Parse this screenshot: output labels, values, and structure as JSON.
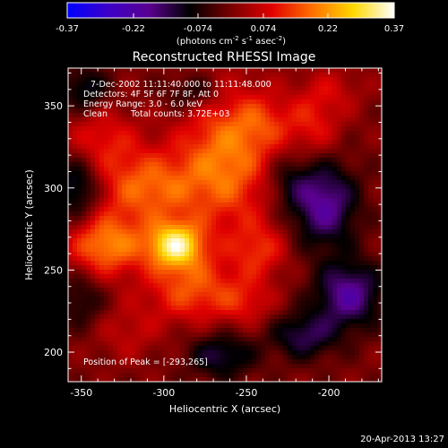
{
  "colorbar": {
    "min_label": "-0.37",
    "max_label": "0.37",
    "tick_labels": [
      "-0.37",
      "-0.22",
      "-0.074",
      "0.074",
      "0.22",
      "0.37"
    ],
    "tick_values": [
      -0.37,
      -0.22,
      -0.074,
      0.074,
      0.22,
      0.37
    ],
    "units_main": "(photons cm",
    "units_exp1": "-2",
    "units_mid": " s",
    "units_exp2": "-1",
    "units_tail": " asec",
    "units_exp3": "-2",
    "units_close": ")",
    "stops": [
      "#0000ff",
      "#3c00c8",
      "#5a0090",
      "#000000",
      "#780000",
      "#e00000",
      "#ff7000",
      "#ffd800",
      "#ffffff"
    ]
  },
  "title": "Reconstructed RHESSI Image",
  "annotations": {
    "time_range": "7-Dec-2002 11:11:40.000 to 11:11:48.000",
    "detectors": "Detectors: 4F 5F 6F 7F 8F, Att 0",
    "energy": "Energy Range: 3.0 - 6.0 keV",
    "clean": "Clean",
    "counts": "Total counts: 3.72E+03",
    "peak": "Position of Peak = [-293,265]"
  },
  "footer_date": "20-Apr-2013 13:27",
  "chart_data": {
    "type": "heatmap",
    "title": "Reconstructed RHESSI Image",
    "xlabel": "Heliocentric X (arcsec)",
    "ylabel": "Heliocentric Y (arcsec)",
    "xlim": [
      -358,
      -168
    ],
    "ylim": [
      182,
      373
    ],
    "x_ticks": [
      -350,
      -300,
      -250,
      -200
    ],
    "y_ticks": [
      200,
      250,
      300,
      350
    ],
    "x_tick_labels": [
      "-350",
      "-300",
      "-250",
      "-200"
    ],
    "y_tick_labels": [
      "200",
      "250",
      "300",
      "350"
    ],
    "value_range": [
      -0.37,
      0.37
    ],
    "peak": {
      "x": -293,
      "y": 265,
      "value": 0.37
    },
    "colormap": "blue-purple-black-red-yellow-white",
    "blobs": [
      {
        "x": -293,
        "y": 265,
        "sx": 12,
        "sy": 10,
        "amp": 0.3
      },
      {
        "x": -335,
        "y": 265,
        "sx": 16,
        "sy": 13,
        "amp": 0.2
      },
      {
        "x": -310,
        "y": 300,
        "sx": 22,
        "sy": 16,
        "amp": 0.17
      },
      {
        "x": -262,
        "y": 318,
        "sx": 20,
        "sy": 30,
        "amp": 0.19
      },
      {
        "x": -283,
        "y": 238,
        "sx": 20,
        "sy": 14,
        "amp": 0.15
      },
      {
        "x": -242,
        "y": 262,
        "sx": 12,
        "sy": 12,
        "amp": 0.11
      },
      {
        "x": -250,
        "y": 230,
        "sx": 12,
        "sy": 10,
        "amp": 0.08
      },
      {
        "x": -338,
        "y": 330,
        "sx": 16,
        "sy": 14,
        "amp": 0.1
      },
      {
        "x": -322,
        "y": 212,
        "sx": 14,
        "sy": 12,
        "amp": 0.06
      },
      {
        "x": -240,
        "y": 340,
        "sx": 12,
        "sy": 12,
        "amp": 0.08
      },
      {
        "x": -210,
        "y": 338,
        "sx": 12,
        "sy": 14,
        "amp": 0.1
      },
      {
        "x": -198,
        "y": 360,
        "sx": 14,
        "sy": 10,
        "amp": 0.06
      },
      {
        "x": -203,
        "y": 290,
        "sx": 14,
        "sy": 18,
        "amp": -0.2
      },
      {
        "x": -188,
        "y": 235,
        "sx": 14,
        "sy": 14,
        "amp": -0.2
      },
      {
        "x": -215,
        "y": 210,
        "sx": 14,
        "sy": 10,
        "amp": -0.14
      },
      {
        "x": -352,
        "y": 300,
        "sx": 10,
        "sy": 14,
        "amp": -0.15
      },
      {
        "x": -348,
        "y": 360,
        "sx": 10,
        "sy": 10,
        "amp": -0.12
      },
      {
        "x": -282,
        "y": 358,
        "sx": 12,
        "sy": 8,
        "amp": -0.1
      },
      {
        "x": -265,
        "y": 198,
        "sx": 14,
        "sy": 10,
        "amp": -0.13
      },
      {
        "x": -350,
        "y": 232,
        "sx": 10,
        "sy": 12,
        "amp": -0.09
      },
      {
        "x": -225,
        "y": 305,
        "sx": 10,
        "sy": 12,
        "amp": -0.08
      }
    ]
  }
}
